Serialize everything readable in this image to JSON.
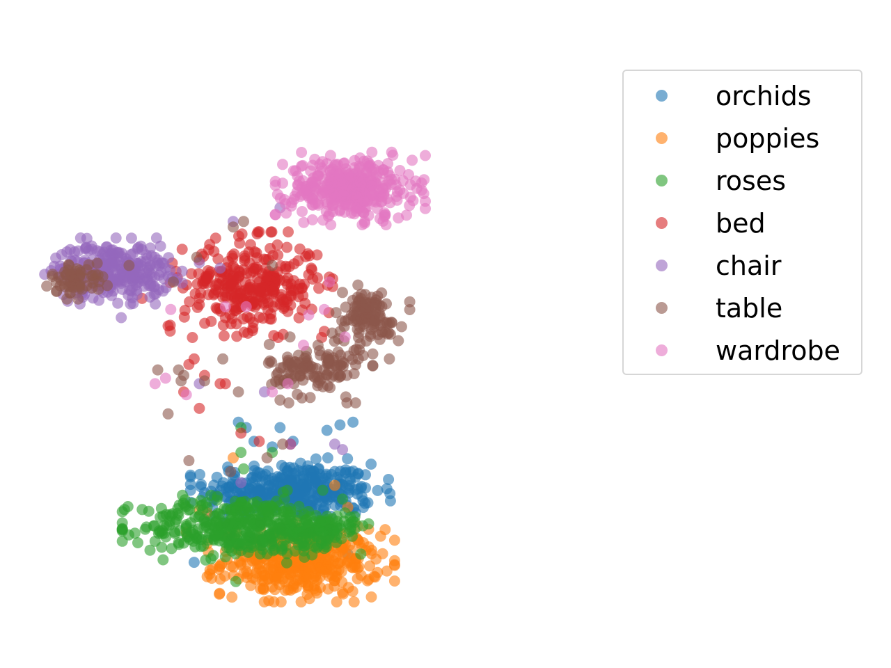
{
  "chart_data": {
    "type": "scatter",
    "title": "",
    "xlabel": "",
    "ylabel": "",
    "axes_visible": false,
    "grid": false,
    "legend_placement": "upper-right outside",
    "marker_alpha": 0.6,
    "xlim": [
      -100,
      100
    ],
    "ylim": [
      -100,
      100
    ],
    "series": [
      {
        "name": "orchids",
        "color": "#1f77b4",
        "cluster": {
          "center": [
            -5,
            -52
          ],
          "spread": [
            16,
            5
          ],
          "n": 380
        },
        "outliers": [
          [
            -22,
            -29
          ],
          [
            -9,
            -29
          ],
          [
            -12,
            -36
          ],
          [
            -4,
            -34
          ],
          [
            9,
            -30
          ],
          [
            14,
            -28
          ],
          [
            19,
            -27
          ],
          [
            -25,
            -27
          ],
          [
            -19,
            -34
          ],
          [
            5,
            -48
          ],
          [
            20,
            -60
          ],
          [
            23,
            -58
          ],
          [
            -42,
            -78
          ],
          [
            -36,
            -61
          ],
          [
            17,
            -75
          ]
        ]
      },
      {
        "name": "poppies",
        "color": "#ff7f0e",
        "cluster": {
          "center": [
            -1,
            -78
          ],
          "spread": [
            15,
            6
          ],
          "n": 400
        },
        "outliers": [
          [
            -27,
            -40
          ],
          [
            -37,
            -60
          ],
          [
            -40,
            -59
          ],
          [
            -45,
            -67
          ],
          [
            17,
            -58
          ],
          [
            25,
            -66
          ],
          [
            19,
            -80
          ],
          [
            -12,
            -87
          ],
          [
            -25,
            -84
          ],
          [
            12,
            -50
          ],
          [
            -30,
            -74
          ],
          [
            21,
            -70
          ]
        ]
      },
      {
        "name": "roses",
        "color": "#2ca02c",
        "cluster": {
          "center": [
            -24,
            -65
          ],
          "spread": [
            19,
            5.5
          ],
          "n": 380
        },
        "extra_cluster": {
          "center": [
            6,
            -66
          ],
          "spread": [
            7,
            3
          ],
          "n": 90
        },
        "outliers": [
          [
            -24,
            -29
          ],
          [
            -24,
            -38
          ],
          [
            -12,
            -38
          ],
          [
            -23,
            -44
          ],
          [
            -37,
            -58
          ],
          [
            -46,
            -71
          ],
          [
            15,
            -55
          ],
          [
            19,
            -63
          ],
          [
            25,
            -64
          ],
          [
            -26,
            -85
          ],
          [
            -30,
            -76
          ],
          [
            -45,
            -65
          ],
          [
            22,
            -75
          ]
        ]
      },
      {
        "name": "bed",
        "color": "#d62728",
        "cluster": {
          "center": [
            -20,
            23
          ],
          "spread": [
            13,
            8
          ],
          "n": 300
        },
        "outliers": [
          [
            -62,
            18
          ],
          [
            -52,
            8
          ],
          [
            -44,
            -6
          ],
          [
            -38,
            -10
          ],
          [
            -30,
            -13
          ],
          [
            -40,
            -22
          ],
          [
            -24,
            -31
          ],
          [
            -17,
            -34
          ],
          [
            -46,
            -16
          ],
          [
            -5,
            -35
          ],
          [
            -30,
            11
          ],
          [
            8,
            6
          ],
          [
            3,
            29
          ],
          [
            -32,
            -13
          ],
          [
            -42,
            -4
          ]
        ]
      },
      {
        "name": "chair",
        "color": "#9467bd",
        "cluster": {
          "center": [
            -73,
            28
          ],
          "spread": [
            11,
            5
          ],
          "n": 280
        },
        "outliers": [
          [
            -52,
            26
          ],
          [
            -40,
            31
          ],
          [
            -32,
            29
          ],
          [
            -24,
            -49
          ],
          [
            -9,
            51
          ],
          [
            -5,
            -35
          ],
          [
            -15,
            -16
          ],
          [
            -40,
            -13
          ],
          [
            15,
            -37
          ],
          [
            -70,
            11
          ],
          [
            12,
            -35
          ],
          [
            -53,
            29
          ],
          [
            -27,
            46
          ]
        ]
      },
      {
        "name": "table",
        "color": "#8c564b",
        "cluster": {
          "center": [
            5,
            -8
          ],
          "spread": [
            9,
            5
          ],
          "n": 120
        },
        "extra_cluster": {
          "center": [
            -87,
            25
          ],
          "spread": [
            5,
            3
          ],
          "n": 60
        },
        "extra_cluster_2": {
          "center": [
            24,
            11
          ],
          "spread": [
            7,
            5
          ],
          "n": 110
        },
        "outliers": [
          [
            -44,
            -41
          ],
          [
            -38,
            -12
          ],
          [
            -46,
            -10
          ],
          [
            -48,
            -8
          ],
          [
            -56,
            -8
          ],
          [
            -52,
            -24
          ],
          [
            -9,
            -19
          ],
          [
            -47,
            -12
          ],
          [
            -31,
            -4
          ],
          [
            -25,
            -16
          ],
          [
            -41,
            33
          ],
          [
            -27,
            44
          ],
          [
            -12,
            30
          ],
          [
            30,
            20
          ],
          [
            -67,
            30
          ],
          [
            -28,
            -45
          ],
          [
            -8,
            -35
          ],
          [
            -50,
            24
          ],
          [
            -23,
            46
          ],
          [
            -14,
            -40
          ],
          [
            33,
            -4
          ],
          [
            20,
            -20
          ]
        ]
      },
      {
        "name": "wardrobe",
        "color": "#e377c2",
        "cluster": {
          "center": [
            18,
            58
          ],
          "spread": [
            12,
            5.5
          ],
          "n": 360
        },
        "outliers": [
          [
            -53,
            -11
          ],
          [
            -45,
            -17
          ],
          [
            -57,
            -13
          ],
          [
            -30,
            15
          ],
          [
            -12,
            -16
          ],
          [
            0,
            1
          ],
          [
            16,
            4
          ],
          [
            2,
            12
          ],
          [
            8,
            14
          ],
          [
            -22,
            15
          ],
          [
            -6,
            -13
          ],
          [
            -51,
            14
          ],
          [
            10,
            24
          ]
        ]
      }
    ]
  }
}
